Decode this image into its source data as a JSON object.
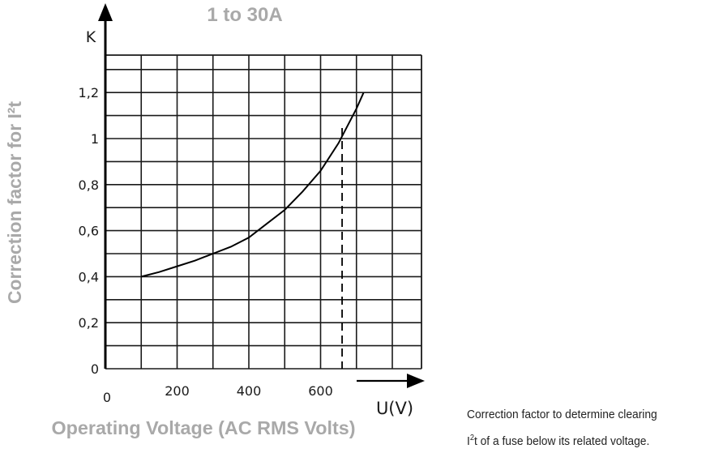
{
  "chart_data": {
    "type": "line",
    "title": "1 to 30A",
    "ylabel": "Correction factor for I²t",
    "y_axis_symbol": "K",
    "xlabel": "Operating Voltage (AC RMS Volts)",
    "x_axis_symbol": "U(V)",
    "xlim": [
      0,
      880
    ],
    "ylim": [
      0,
      1.3
    ],
    "x_ticks": [
      0,
      200,
      400,
      600
    ],
    "x_tick_labels": [
      "0",
      "200",
      "400",
      "600"
    ],
    "y_ticks": [
      0,
      0.2,
      0.4,
      0.6,
      0.8,
      1,
      1.2
    ],
    "y_tick_labels": [
      "0",
      "0,2",
      "0,4",
      "0,6",
      "0,8",
      "1",
      "1,2"
    ],
    "grid": true,
    "series": [
      {
        "x": [
          100,
          150,
          200,
          250,
          300,
          350,
          400,
          450,
          500,
          550,
          600,
          650,
          700,
          720
        ],
        "y": [
          0.4,
          0.42,
          0.445,
          0.47,
          0.5,
          0.53,
          0.57,
          0.63,
          0.69,
          0.77,
          0.86,
          0.98,
          1.13,
          1.2
        ]
      }
    ],
    "reference_lines": [
      {
        "x": 660,
        "style": "dashed"
      }
    ]
  },
  "caption": {
    "line1": "Correction factor to determine clearing",
    "line2_prefix": "I",
    "line2_sup": "2",
    "line2_suffix": "t of a fuse below its related voltage."
  }
}
